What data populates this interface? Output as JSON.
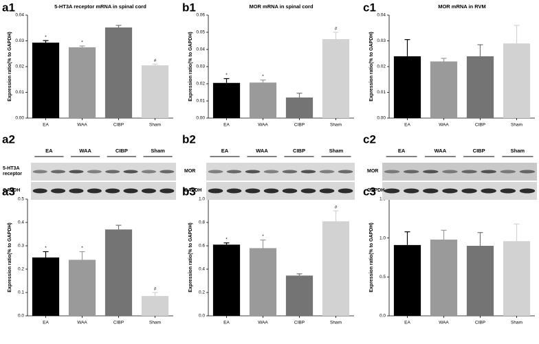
{
  "chart_data": [
    {
      "type": "bar",
      "panel": "a1",
      "title": "5-HT3A receptor mRNA in spinal cord",
      "ylabel": "Expression ratio(% to GAPDH)",
      "categories": [
        "EA",
        "WAA",
        "CIBP",
        "Sham"
      ],
      "values": [
        0.0293,
        0.0275,
        0.0352,
        0.0205
      ],
      "errors": [
        0.0008,
        0.0005,
        0.0008,
        0.0005
      ],
      "annotations": [
        "*",
        "*",
        null,
        "#"
      ],
      "colors": [
        "#000000",
        "#9a9a9a",
        "#747474",
        "#d2d2d2"
      ],
      "ylim": [
        0,
        0.04
      ],
      "yticks": [
        {
          "value": 0,
          "label": "0.00"
        },
        0.01,
        0.02,
        0.03,
        0.04
      ]
    },
    {
      "type": "bar",
      "panel": "b1",
      "title": "MOR mRNA in spinal cord",
      "ylabel": "Expression ratio(% to GAPDH)",
      "categories": [
        "EA",
        "WAA",
        "CIBP",
        "Sham"
      ],
      "values": [
        0.0205,
        0.0207,
        0.012,
        0.046
      ],
      "errors": [
        0.0025,
        0.0015,
        0.0025,
        0.004
      ],
      "annotations": [
        "*",
        "*",
        null,
        "#"
      ],
      "colors": [
        "#000000",
        "#9a9a9a",
        "#747474",
        "#d2d2d2"
      ],
      "ylim": [
        0,
        0.06
      ],
      "yticks": [
        {
          "value": 0,
          "label": "0.00"
        },
        0.01,
        0.02,
        0.03,
        0.04,
        0.05,
        0.06
      ]
    },
    {
      "type": "bar",
      "panel": "c1",
      "title": "MOR mRNA in RVM",
      "ylabel": "Expression ratio(% to GAPDH)",
      "categories": [
        "EA",
        "WAA",
        "CIBP",
        "Sham"
      ],
      "values": [
        0.024,
        0.022,
        0.024,
        0.029
      ],
      "errors": [
        0.0065,
        0.0012,
        0.0045,
        0.007
      ],
      "annotations": [
        null,
        null,
        null,
        null
      ],
      "colors": [
        "#000000",
        "#9a9a9a",
        "#747474",
        "#d2d2d2"
      ],
      "ylim": [
        0,
        0.04
      ],
      "yticks": [
        {
          "value": 0,
          "label": "0.00"
        },
        0.01,
        0.02,
        0.03,
        0.04
      ]
    },
    {
      "type": "bar",
      "panel": "a3",
      "title": "5-HT3A receptor protein in spinal cord",
      "ylabel": "Expression ratio(% to GAPDH)",
      "categories": [
        "EA",
        "WAA",
        "CIBP",
        "Sham"
      ],
      "values": [
        0.25,
        0.24,
        0.37,
        0.085
      ],
      "errors": [
        0.025,
        0.035,
        0.018,
        0.015
      ],
      "annotations": [
        "*",
        "*",
        null,
        "#"
      ],
      "colors": [
        "#000000",
        "#9a9a9a",
        "#747474",
        "#d2d2d2"
      ],
      "ylim": [
        0,
        0.5
      ],
      "yticks": [
        {
          "value": 0,
          "label": "0.0"
        },
        0.1,
        0.2,
        0.3,
        0.4,
        0.5
      ]
    },
    {
      "type": "bar",
      "panel": "b3",
      "title": "MOR protein in spinal cord",
      "ylabel": "Expression ratio(% to GAPDH)",
      "categories": [
        "EA",
        "WAA",
        "CIBP",
        "Sham"
      ],
      "values": [
        0.61,
        0.58,
        0.345,
        0.81
      ],
      "errors": [
        0.015,
        0.07,
        0.015,
        0.09
      ],
      "annotations": [
        "*",
        "*",
        null,
        "#"
      ],
      "colors": [
        "#000000",
        "#9a9a9a",
        "#747474",
        "#d2d2d2"
      ],
      "ylim": [
        0,
        1.0
      ],
      "yticks": [
        {
          "value": 0,
          "label": "0.0"
        },
        0.2,
        0.4,
        0.6,
        0.8,
        {
          "value": 1.0,
          "label": "1.0"
        }
      ]
    },
    {
      "type": "bar",
      "panel": "c3",
      "title": "MOR protein in RVM",
      "ylabel": "Expression ratio(% to GAPDH)",
      "categories": [
        "EA",
        "WAA",
        "CIBP",
        "Sham"
      ],
      "values": [
        0.91,
        0.98,
        0.9,
        0.96
      ],
      "errors": [
        0.17,
        0.12,
        0.17,
        0.22
      ],
      "annotations": [
        null,
        null,
        null,
        null
      ],
      "colors": [
        "#000000",
        "#9a9a9a",
        "#747474",
        "#d2d2d2"
      ],
      "ylim": [
        0,
        1.5
      ],
      "yticks": [
        {
          "value": 0,
          "label": "0.0"
        },
        0.5,
        {
          "value": 1.0,
          "label": "1.0"
        },
        1.5
      ]
    }
  ],
  "blots": [
    {
      "panel": "a2",
      "lanes": [
        "EA",
        "WAA",
        "CIBP",
        "Sham"
      ],
      "rows": [
        "5-HT3A receptor",
        "GAPDH"
      ]
    },
    {
      "panel": "b2",
      "lanes": [
        "EA",
        "WAA",
        "CIBP",
        "Sham"
      ],
      "rows": [
        "MOR",
        "GAPDH"
      ]
    },
    {
      "panel": "c2",
      "lanes": [
        "EA",
        "WAA",
        "CIBP",
        "Sham"
      ],
      "rows": [
        "MOR",
        "GAPDH"
      ]
    }
  ]
}
